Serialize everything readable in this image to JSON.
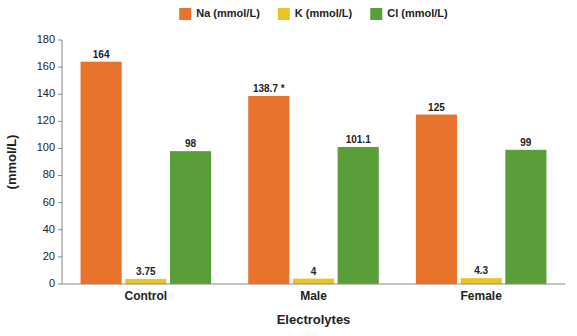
{
  "chart_data": {
    "type": "bar",
    "categories": [
      "Control",
      "Male",
      "Female"
    ],
    "series": [
      {
        "name": "Na (mmol/L)",
        "color": "#E8732A",
        "values": [
          164,
          138.7,
          125
        ],
        "value_labels": [
          "164",
          "138.7 *",
          "125"
        ]
      },
      {
        "name": "K (mmol/L)",
        "color": "#E8C425",
        "values": [
          3.75,
          4,
          4.3
        ]
      },
      {
        "name": "Cl (mmol/L)",
        "color": "#5A9E3A",
        "values": [
          98,
          101.1,
          99
        ]
      }
    ],
    "xlabel": "Electrolytes",
    "ylabel": "(mmol/L)",
    "ylim": [
      0,
      180
    ],
    "yticks": [
      0,
      20,
      40,
      60,
      80,
      100,
      120,
      140,
      160,
      180
    ],
    "grid": false,
    "legend": "top",
    "data_labels": true
  }
}
